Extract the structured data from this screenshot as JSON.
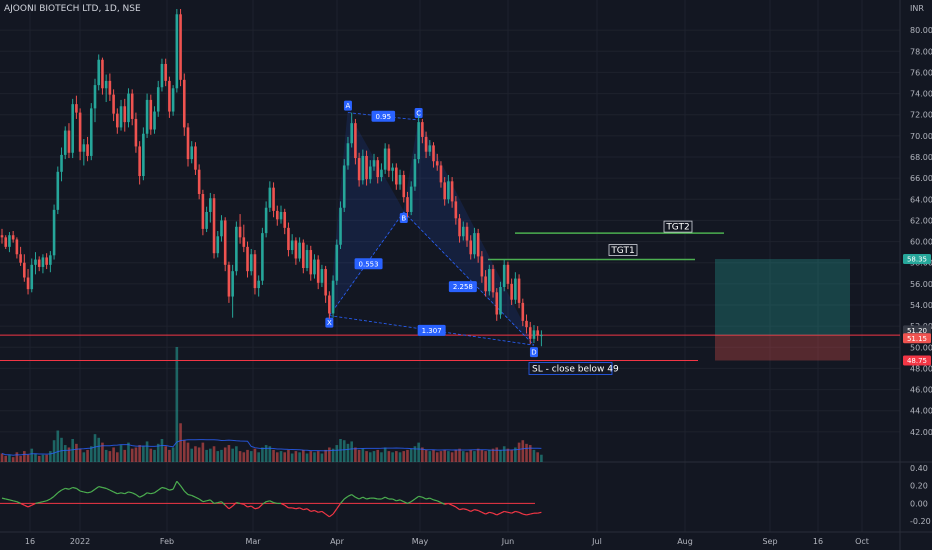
{
  "header": {
    "symbol": "AJOONI BIOTECH LTD, 1D, NSE"
  },
  "chart_data": {
    "type": "candlestick",
    "symbol": "AJOONI BIOTECH LTD",
    "interval": "1D",
    "exchange": "NSE",
    "currency": "INR",
    "price_axis": {
      "range": [
        40.0,
        82.0
      ],
      "ticks": [
        "42.00",
        "44.00",
        "46.00",
        "48.00",
        "50.00",
        "52.00",
        "54.00",
        "56.00",
        "58.00",
        "60.00",
        "62.00",
        "64.00",
        "66.00",
        "68.00",
        "70.00",
        "72.00",
        "74.00",
        "76.00",
        "78.00",
        "80.00"
      ]
    },
    "time_axis": {
      "labels": [
        "16",
        "2022",
        "Feb",
        "Mar",
        "Apr",
        "May",
        "Jun",
        "Jul",
        "Aug",
        "Sep",
        "16",
        "Oct"
      ]
    },
    "oscillator_axis": {
      "range": [
        -0.3,
        0.4
      ],
      "ticks": [
        "0.40",
        "0.20",
        "0.00",
        "-0.20"
      ]
    },
    "price_labels": [
      "58.35",
      "51.20",
      "51.15",
      "48.75"
    ],
    "harmonic_pattern": {
      "points": [
        {
          "label": "X",
          "date_index": 88,
          "price": 53.0
        },
        {
          "label": "A",
          "date_index": 93,
          "price": 72.2
        },
        {
          "label": "B",
          "date_index": 108,
          "price": 62.8
        },
        {
          "label": "C",
          "date_index": 112,
          "price": 71.5
        },
        {
          "label": "D",
          "date_index": 143,
          "price": 50.2
        }
      ],
      "ratios": [
        "0.95",
        "0.553",
        "2.258",
        "1.307"
      ]
    },
    "levels": [
      {
        "label": "TGT2",
        "price": 60.8
      },
      {
        "label": "TGT1",
        "price": 58.3
      },
      {
        "label": "",
        "price": 51.15
      },
      {
        "label": "SL - close below 49",
        "price": 48.75
      }
    ],
    "position": {
      "entry": 51.15,
      "target": 58.35,
      "stop": 48.75
    },
    "colors": {
      "up": "#26a69a",
      "down": "#ef5350",
      "pattern": "#2962ff",
      "level_green": "#4caf50",
      "level_red": "#f23645",
      "oscillator_up": "#4caf50",
      "oscillator_down": "#f23645",
      "background": "#131722"
    },
    "candles": [
      [
        60.6,
        61.2,
        59.8,
        60.4
      ],
      [
        60.4,
        60.6,
        59.3,
        59.5
      ],
      [
        59.5,
        60.9,
        59.0,
        60.6
      ],
      [
        60.6,
        61.0,
        59.9,
        60.2
      ],
      [
        60.2,
        60.4,
        58.4,
        58.8
      ],
      [
        58.8,
        59.5,
        57.7,
        58.0
      ],
      [
        58.0,
        58.8,
        56.2,
        56.6
      ],
      [
        56.6,
        57.4,
        55.0,
        55.5
      ],
      [
        55.5,
        58.4,
        55.2,
        57.8
      ],
      [
        57.8,
        59.0,
        56.9,
        58.3
      ],
      [
        58.3,
        58.6,
        57.2,
        57.6
      ],
      [
        57.6,
        58.8,
        57.0,
        58.5
      ],
      [
        58.5,
        58.9,
        57.4,
        57.8
      ],
      [
        57.8,
        59.1,
        57.1,
        58.7
      ],
      [
        58.7,
        63.5,
        58.3,
        63.0
      ],
      [
        63.0,
        67.1,
        62.6,
        66.6
      ],
      [
        66.6,
        68.9,
        65.7,
        68.2
      ],
      [
        68.2,
        70.9,
        67.8,
        70.5
      ],
      [
        70.5,
        71.2,
        67.9,
        68.4
      ],
      [
        68.4,
        73.5,
        67.9,
        73.0
      ],
      [
        73.0,
        73.8,
        71.6,
        72.2
      ],
      [
        72.2,
        72.6,
        67.7,
        68.5
      ],
      [
        68.5,
        69.7,
        67.2,
        69.2
      ],
      [
        69.2,
        69.9,
        67.6,
        68.1
      ],
      [
        68.1,
        73.1,
        67.7,
        72.6
      ],
      [
        72.6,
        75.4,
        71.3,
        74.8
      ],
      [
        74.8,
        77.7,
        74.3,
        77.2
      ],
      [
        77.2,
        77.4,
        73.9,
        74.5
      ],
      [
        74.5,
        75.8,
        73.2,
        75.2
      ],
      [
        75.2,
        75.9,
        73.3,
        73.9
      ],
      [
        73.9,
        74.4,
        71.4,
        72.1
      ],
      [
        72.1,
        72.6,
        70.2,
        70.8
      ],
      [
        70.8,
        73.4,
        70.5,
        72.8
      ],
      [
        72.8,
        73.5,
        70.4,
        71.3
      ],
      [
        71.3,
        74.5,
        70.8,
        74.0
      ],
      [
        74.0,
        74.4,
        71.0,
        71.6
      ],
      [
        71.6,
        72.2,
        68.4,
        69.0
      ],
      [
        69.0,
        69.5,
        65.4,
        66.2
      ],
      [
        66.2,
        70.8,
        65.8,
        70.2
      ],
      [
        70.2,
        74.0,
        69.8,
        73.4
      ],
      [
        73.4,
        73.9,
        70.1,
        70.6
      ],
      [
        70.6,
        72.8,
        70.2,
        72.3
      ],
      [
        72.3,
        75.2,
        71.8,
        74.6
      ],
      [
        74.6,
        77.3,
        74.2,
        76.8
      ],
      [
        76.8,
        77.3,
        74.7,
        75.2
      ],
      [
        75.2,
        75.6,
        71.7,
        72.3
      ],
      [
        72.3,
        74.8,
        71.9,
        74.5
      ],
      [
        74.5,
        82.0,
        74.1,
        81.5
      ],
      [
        81.5,
        82.0,
        74.7,
        75.3
      ],
      [
        75.3,
        75.9,
        70.0,
        70.8
      ],
      [
        70.8,
        71.2,
        67.1,
        67.8
      ],
      [
        67.8,
        69.5,
        67.4,
        69.0
      ],
      [
        69.0,
        69.4,
        66.3,
        66.8
      ],
      [
        66.8,
        67.3,
        64.0,
        64.5
      ],
      [
        64.5,
        64.9,
        60.6,
        61.2
      ],
      [
        61.2,
        63.3,
        60.9,
        62.8
      ],
      [
        62.8,
        64.6,
        61.8,
        64.1
      ],
      [
        64.1,
        64.5,
        58.4,
        58.9
      ],
      [
        58.9,
        61.0,
        58.5,
        60.5
      ],
      [
        60.5,
        62.5,
        60.0,
        62.0
      ],
      [
        62.0,
        62.3,
        57.2,
        57.8
      ],
      [
        57.8,
        58.1,
        54.2,
        54.8
      ],
      [
        54.8,
        57.8,
        52.8,
        57.2
      ],
      [
        57.2,
        61.9,
        56.8,
        61.4
      ],
      [
        61.4,
        62.6,
        59.8,
        60.4
      ],
      [
        60.4,
        61.6,
        59.0,
        59.5
      ],
      [
        59.5,
        60.0,
        56.6,
        57.2
      ],
      [
        57.2,
        59.3,
        56.8,
        58.8
      ],
      [
        58.8,
        59.2,
        55.0,
        55.6
      ],
      [
        55.6,
        56.8,
        54.8,
        56.3
      ],
      [
        56.3,
        61.3,
        55.9,
        60.8
      ],
      [
        60.8,
        63.8,
        60.4,
        63.2
      ],
      [
        63.2,
        65.7,
        62.8,
        65.1
      ],
      [
        65.1,
        65.6,
        62.3,
        62.9
      ],
      [
        62.9,
        63.4,
        61.5,
        62.1
      ],
      [
        62.1,
        63.4,
        61.7,
        62.8
      ],
      [
        62.8,
        63.1,
        60.7,
        61.3
      ],
      [
        61.3,
        61.8,
        58.6,
        59.2
      ],
      [
        59.2,
        60.7,
        58.8,
        60.1
      ],
      [
        60.1,
        60.4,
        57.8,
        58.4
      ],
      [
        58.4,
        60.4,
        58.1,
        59.9
      ],
      [
        59.9,
        60.2,
        57.0,
        57.5
      ],
      [
        57.5,
        59.7,
        57.2,
        59.2
      ],
      [
        59.2,
        59.6,
        56.3,
        56.9
      ],
      [
        56.9,
        58.8,
        56.5,
        58.3
      ],
      [
        58.3,
        58.7,
        55.5,
        56.1
      ],
      [
        56.1,
        57.8,
        55.7,
        57.4
      ],
      [
        57.4,
        57.7,
        54.2,
        54.9
      ],
      [
        54.9,
        55.3,
        52.7,
        53.2
      ],
      [
        53.2,
        56.8,
        52.8,
        56.3
      ],
      [
        56.3,
        60.2,
        55.9,
        59.7
      ],
      [
        59.7,
        63.8,
        59.3,
        63.2
      ],
      [
        63.2,
        67.8,
        62.8,
        67.2
      ],
      [
        67.2,
        69.9,
        66.8,
        69.3
      ],
      [
        69.3,
        72.2,
        68.9,
        71.2
      ],
      [
        71.2,
        71.6,
        67.3,
        67.9
      ],
      [
        67.9,
        68.4,
        65.2,
        65.8
      ],
      [
        65.8,
        68.7,
        65.4,
        68.1
      ],
      [
        68.1,
        68.6,
        65.3,
        65.9
      ],
      [
        65.9,
        67.7,
        65.5,
        67.1
      ],
      [
        67.1,
        68.3,
        66.7,
        67.7
      ],
      [
        67.7,
        68.0,
        65.5,
        66.1
      ],
      [
        66.1,
        67.4,
        65.7,
        66.8
      ],
      [
        66.8,
        69.3,
        66.4,
        68.8
      ],
      [
        68.8,
        69.2,
        66.1,
        66.7
      ],
      [
        66.7,
        67.4,
        65.7,
        67.0
      ],
      [
        67.0,
        67.4,
        64.9,
        65.4
      ],
      [
        65.4,
        66.8,
        64.9,
        66.3
      ],
      [
        66.3,
        66.7,
        63.7,
        64.2
      ],
      [
        64.2,
        64.7,
        62.3,
        62.8
      ],
      [
        62.8,
        65.7,
        62.5,
        65.2
      ],
      [
        65.2,
        68.3,
        64.8,
        67.8
      ],
      [
        67.8,
        71.9,
        67.4,
        71.3
      ],
      [
        71.3,
        71.6,
        69.3,
        69.9
      ],
      [
        69.9,
        70.4,
        67.9,
        68.5
      ],
      [
        68.5,
        69.6,
        68.1,
        69.1
      ],
      [
        69.1,
        69.4,
        67.0,
        67.6
      ],
      [
        67.6,
        68.3,
        66.7,
        67.2
      ],
      [
        67.2,
        67.6,
        65.1,
        65.6
      ],
      [
        65.6,
        66.1,
        63.4,
        64.0
      ],
      [
        64.0,
        66.3,
        63.6,
        65.7
      ],
      [
        65.7,
        66.1,
        63.2,
        63.8
      ],
      [
        63.8,
        64.3,
        61.6,
        62.2
      ],
      [
        62.2,
        62.6,
        59.9,
        60.5
      ],
      [
        60.5,
        61.9,
        60.1,
        61.4
      ],
      [
        61.4,
        61.8,
        59.5,
        60.1
      ],
      [
        60.1,
        60.6,
        58.3,
        58.8
      ],
      [
        58.8,
        61.3,
        58.4,
        60.8
      ],
      [
        60.8,
        61.2,
        58.0,
        58.6
      ],
      [
        58.6,
        59.1,
        56.1,
        56.7
      ],
      [
        56.7,
        57.3,
        54.8,
        55.3
      ],
      [
        55.3,
        57.8,
        54.9,
        57.4
      ],
      [
        57.4,
        57.8,
        54.7,
        55.2
      ],
      [
        55.2,
        55.6,
        52.5,
        53.1
      ],
      [
        53.1,
        56.2,
        52.7,
        55.7
      ],
      [
        55.7,
        58.3,
        55.3,
        57.8
      ],
      [
        57.8,
        58.1,
        55.5,
        56.0
      ],
      [
        56.0,
        56.5,
        54.0,
        54.5
      ],
      [
        54.5,
        57.1,
        54.1,
        56.5
      ],
      [
        56.5,
        56.9,
        53.7,
        54.2
      ],
      [
        54.2,
        54.6,
        52.0,
        52.5
      ],
      [
        52.5,
        53.1,
        51.3,
        51.9
      ],
      [
        51.9,
        52.4,
        50.3,
        50.8
      ],
      [
        50.8,
        52.1,
        50.4,
        51.6
      ],
      [
        51.6,
        52.0,
        50.6,
        51.1
      ],
      [
        51.1,
        51.6,
        50.1,
        51.15
      ]
    ],
    "volume": [
      0.7,
      0.5,
      0.6,
      0.4,
      0.8,
      0.5,
      0.9,
      0.6,
      1.1,
      0.7,
      0.5,
      0.6,
      0.6,
      0.9,
      1.8,
      2.6,
      2.0,
      1.4,
      1.2,
      1.9,
      1.5,
      1.1,
      0.8,
      1.0,
      1.3,
      2.3,
      2.0,
      1.6,
      1.0,
      0.9,
      1.2,
      0.8,
      1.4,
      1.0,
      1.6,
      1.1,
      1.2,
      1.4,
      1.3,
      1.7,
      1.1,
      1.0,
      1.5,
      1.9,
      1.3,
      1.0,
      1.2,
      9.5,
      3.2,
      1.8,
      1.6,
      1.1,
      1.3,
      1.2,
      1.6,
      1.0,
      1.1,
      1.3,
      0.9,
      1.0,
      1.2,
      1.4,
      1.1,
      1.3,
      0.9,
      0.8,
      1.0,
      0.9,
      1.1,
      0.8,
      1.2,
      1.4,
      1.3,
      1.0,
      0.8,
      0.9,
      0.8,
      1.0,
      0.7,
      0.9,
      0.8,
      1.0,
      0.7,
      0.9,
      0.8,
      0.9,
      0.7,
      1.0,
      1.2,
      1.1,
      1.4,
      1.9,
      1.8,
      1.5,
      1.7,
      1.2,
      1.0,
      1.1,
      0.9,
      0.8,
      0.9,
      1.0,
      0.8,
      1.2,
      0.9,
      0.8,
      0.9,
      0.8,
      0.9,
      1.0,
      1.1,
      1.3,
      1.6,
      1.2,
      1.0,
      0.9,
      1.0,
      0.8,
      0.9,
      1.0,
      0.9,
      0.8,
      1.0,
      1.1,
      0.9,
      0.8,
      1.0,
      0.9,
      1.1,
      1.0,
      0.9,
      1.0,
      1.1,
      1.2,
      1.0,
      1.3,
      1.1,
      1.0,
      1.2,
      1.6,
      1.8,
      1.5,
      1.4,
      1.0,
      0.8,
      0.6
    ],
    "oscillator": [
      0.06,
      0.05,
      0.04,
      0.03,
      0.02,
      0.0,
      -0.02,
      -0.04,
      -0.02,
      0.0,
      0.01,
      0.02,
      0.03,
      0.05,
      0.08,
      0.12,
      0.15,
      0.17,
      0.16,
      0.18,
      0.17,
      0.14,
      0.13,
      0.12,
      0.13,
      0.16,
      0.19,
      0.18,
      0.17,
      0.15,
      0.13,
      0.11,
      0.12,
      0.11,
      0.13,
      0.12,
      0.1,
      0.07,
      0.09,
      0.12,
      0.11,
      0.12,
      0.15,
      0.18,
      0.17,
      0.15,
      0.16,
      0.25,
      0.2,
      0.14,
      0.1,
      0.09,
      0.07,
      0.05,
      0.02,
      0.03,
      0.04,
      0.0,
      0.01,
      0.02,
      -0.02,
      -0.06,
      -0.03,
      0.01,
      0.0,
      -0.01,
      -0.04,
      -0.03,
      -0.06,
      -0.05,
      -0.01,
      0.02,
      0.03,
      0.01,
      0.0,
      0.0,
      -0.02,
      -0.05,
      -0.05,
      -0.06,
      -0.05,
      -0.07,
      -0.06,
      -0.09,
      -0.08,
      -0.1,
      -0.09,
      -0.12,
      -0.15,
      -0.12,
      -0.06,
      0.0,
      0.05,
      0.08,
      0.1,
      0.07,
      0.05,
      0.07,
      0.05,
      0.06,
      0.06,
      0.05,
      0.05,
      0.07,
      0.05,
      0.05,
      0.03,
      0.04,
      0.02,
      0.0,
      0.02,
      0.05,
      0.08,
      0.07,
      0.05,
      0.06,
      0.04,
      0.03,
      0.01,
      -0.01,
      0.0,
      -0.02,
      -0.04,
      -0.07,
      -0.06,
      -0.07,
      -0.09,
      -0.07,
      -0.08,
      -0.1,
      -0.12,
      -0.1,
      -0.11,
      -0.13,
      -0.11,
      -0.09,
      -0.1,
      -0.11,
      -0.09,
      -0.1,
      -0.12,
      -0.13,
      -0.12,
      -0.11,
      -0.11,
      -0.1
    ]
  }
}
